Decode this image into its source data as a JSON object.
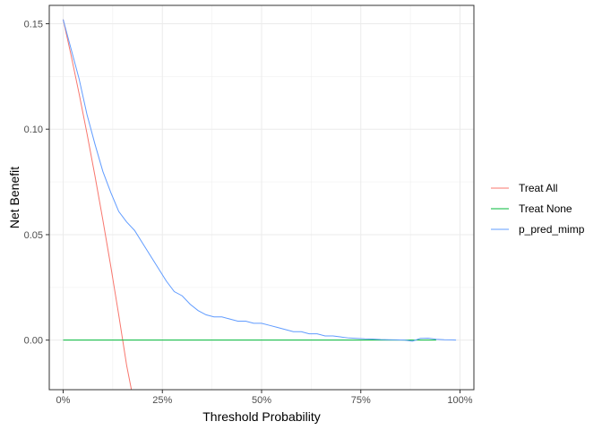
{
  "chart_data": {
    "type": "line",
    "xlabel": "Threshold Probability",
    "ylabel": "Net Benefit",
    "xlim": [
      -0.035,
      1.035
    ],
    "ylim": [
      -0.0235,
      0.1587
    ],
    "x_ticks": [
      0,
      0.25,
      0.5,
      0.75,
      1.0
    ],
    "x_tick_labels": [
      "0%",
      "25%",
      "50%",
      "75%",
      "100%"
    ],
    "y_ticks": [
      0.0,
      0.05,
      0.1,
      0.15
    ],
    "y_tick_labels": [
      "0.00",
      "0.05",
      "0.10",
      "0.15"
    ],
    "grid": true,
    "legend_position": "right",
    "series": [
      {
        "name": "Treat All",
        "color": "#F8766D",
        "x": [
          0.0,
          0.02,
          0.04,
          0.06,
          0.08,
          0.1,
          0.12,
          0.14,
          0.16,
          0.172
        ],
        "y": [
          0.152,
          0.135,
          0.117,
          0.098,
          0.078,
          0.057,
          0.035,
          0.012,
          -0.012,
          -0.0235
        ]
      },
      {
        "name": "Treat None",
        "color": "#00BA38",
        "x": [
          0.0,
          0.94
        ],
        "y": [
          0.0,
          0.0
        ]
      },
      {
        "name": "p_pred_mimp",
        "color": "#619CFF",
        "x": [
          0.0,
          0.02,
          0.04,
          0.06,
          0.08,
          0.1,
          0.12,
          0.14,
          0.16,
          0.18,
          0.2,
          0.22,
          0.24,
          0.26,
          0.28,
          0.3,
          0.32,
          0.34,
          0.36,
          0.38,
          0.4,
          0.42,
          0.44,
          0.46,
          0.48,
          0.5,
          0.52,
          0.54,
          0.56,
          0.58,
          0.6,
          0.62,
          0.64,
          0.66,
          0.68,
          0.7,
          0.72,
          0.74,
          0.76,
          0.78,
          0.8,
          0.82,
          0.84,
          0.86,
          0.88,
          0.9,
          0.92,
          0.94,
          0.96,
          0.98,
          0.99
        ],
        "y": [
          0.152,
          0.138,
          0.124,
          0.107,
          0.093,
          0.08,
          0.07,
          0.061,
          0.056,
          0.052,
          0.046,
          0.04,
          0.034,
          0.028,
          0.023,
          0.021,
          0.017,
          0.014,
          0.012,
          0.011,
          0.011,
          0.01,
          0.009,
          0.009,
          0.008,
          0.008,
          0.007,
          0.006,
          0.005,
          0.004,
          0.004,
          0.003,
          0.003,
          0.002,
          0.002,
          0.0015,
          0.001,
          0.0008,
          0.0006,
          0.0005,
          0.0003,
          0.0002,
          0.0001,
          0.0,
          -0.0005,
          0.0008,
          0.0009,
          0.0004,
          0.0002,
          0.0001,
          0.0
        ]
      }
    ]
  }
}
